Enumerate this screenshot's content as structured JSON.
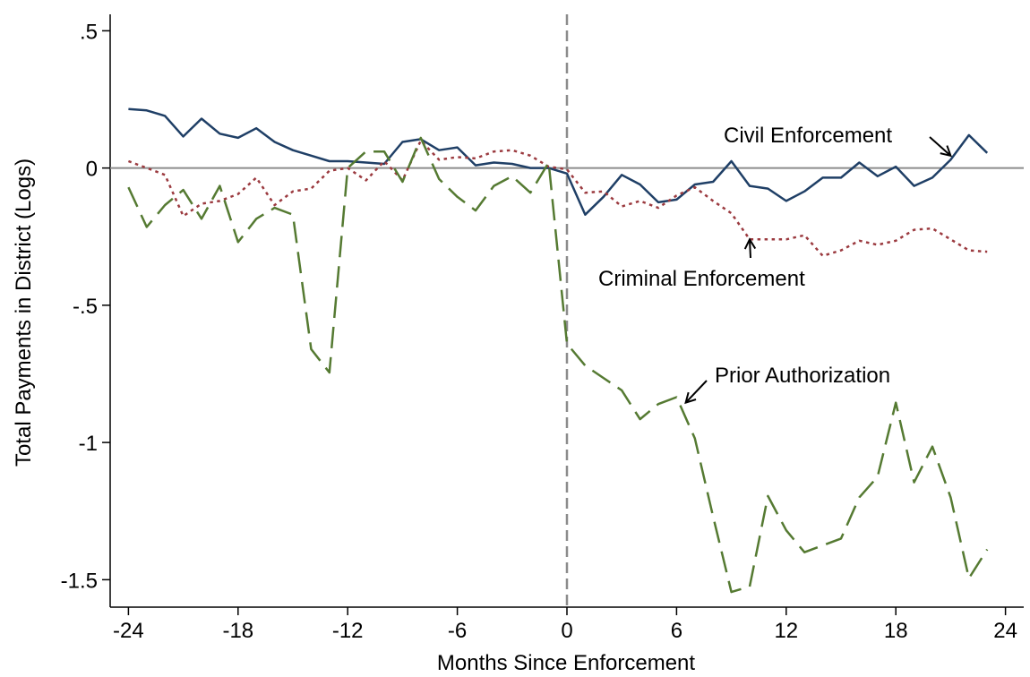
{
  "chart_data": {
    "type": "line",
    "xlabel": "Months Since Enforcement",
    "ylabel": "Total Payments in District (Logs)",
    "xlim": [
      -25,
      25
    ],
    "ylim": [
      -1.6,
      0.56
    ],
    "xticks": [
      -24,
      -18,
      -12,
      -6,
      0,
      6,
      12,
      18,
      24
    ],
    "xtick_labels": [
      "-24",
      "-18",
      "-12",
      "-6",
      "0",
      "6",
      "12",
      "18",
      "24"
    ],
    "yticks": [
      0.5,
      0,
      -0.5,
      -1,
      -1.5
    ],
    "ytick_labels": [
      ".5",
      "0",
      "-.5",
      "-1",
      "-1.5"
    ],
    "reference_lines": {
      "horizontal_y": 0,
      "vertical_x": 0
    },
    "grid": false,
    "legend": "none",
    "series": [
      {
        "name": "Civil Enforcement",
        "style": "solid",
        "color": "#1f3f66",
        "x": [
          -24,
          -23,
          -22,
          -21,
          -20,
          -19,
          -18,
          -17,
          -16,
          -15,
          -14,
          -13,
          -12,
          -11,
          -10,
          -9,
          -8,
          -7,
          -6,
          -5,
          -4,
          -3,
          -2,
          -1,
          0,
          1,
          2,
          3,
          4,
          5,
          6,
          7,
          8,
          9,
          10,
          11,
          12,
          13,
          14,
          15,
          16,
          17,
          18,
          19,
          20,
          21,
          22,
          23
        ],
        "y": [
          0.215,
          0.21,
          0.19,
          0.115,
          0.18,
          0.125,
          0.11,
          0.145,
          0.095,
          0.065,
          0.045,
          0.025,
          0.025,
          0.02,
          0.015,
          0.095,
          0.105,
          0.065,
          0.075,
          0.01,
          0.02,
          0.015,
          0.0,
          0.0,
          -0.02,
          -0.17,
          -0.105,
          -0.025,
          -0.06,
          -0.125,
          -0.115,
          -0.06,
          -0.05,
          0.025,
          -0.065,
          -0.075,
          -0.12,
          -0.085,
          -0.035,
          -0.035,
          0.02,
          -0.03,
          0.005,
          -0.065,
          -0.035,
          0.03,
          0.12,
          0.055
        ]
      },
      {
        "name": "Criminal Enforcement",
        "style": "dotted",
        "color": "#9b3a3f",
        "x": [
          -24,
          -23,
          -22,
          -21,
          -20,
          -19,
          -18,
          -17,
          -16,
          -15,
          -14,
          -13,
          -12,
          -11,
          -10,
          -9,
          -8,
          -7,
          -6,
          -5,
          -4,
          -3,
          -2,
          -1,
          0,
          1,
          2,
          3,
          4,
          5,
          6,
          7,
          8,
          9,
          10,
          11,
          12,
          13,
          14,
          15,
          16,
          17,
          18,
          19,
          20,
          21,
          22,
          23
        ],
        "y": [
          0.025,
          0.0,
          -0.025,
          -0.175,
          -0.13,
          -0.12,
          -0.095,
          -0.035,
          -0.135,
          -0.085,
          -0.075,
          -0.01,
          0.0,
          -0.045,
          0.025,
          -0.045,
          0.1,
          0.03,
          0.04,
          0.035,
          0.06,
          0.065,
          0.045,
          0.005,
          -0.005,
          -0.09,
          -0.085,
          -0.14,
          -0.12,
          -0.145,
          -0.1,
          -0.07,
          -0.12,
          -0.165,
          -0.26,
          -0.26,
          -0.26,
          -0.245,
          -0.32,
          -0.3,
          -0.265,
          -0.28,
          -0.265,
          -0.225,
          -0.22,
          -0.26,
          -0.3,
          -0.305
        ]
      },
      {
        "name": "Prior Authorization",
        "style": "dashed",
        "color": "#557a32",
        "x": [
          -24,
          -23,
          -22,
          -21,
          -20,
          -19,
          -18,
          -17,
          -16,
          -15,
          -14,
          -13,
          -12,
          -11,
          -10,
          -9,
          -8,
          -7,
          -6,
          -5,
          -4,
          -3,
          -2,
          -1,
          0,
          1,
          2,
          3,
          4,
          5,
          6,
          7,
          8,
          9,
          10,
          11,
          12,
          13,
          14,
          15,
          16,
          17,
          18,
          19,
          20,
          21,
          22,
          23
        ],
        "y": [
          -0.07,
          -0.215,
          -0.135,
          -0.08,
          -0.185,
          -0.065,
          -0.27,
          -0.185,
          -0.145,
          -0.17,
          -0.66,
          -0.745,
          0.0,
          0.06,
          0.06,
          -0.05,
          0.11,
          -0.04,
          -0.105,
          -0.155,
          -0.065,
          -0.03,
          -0.09,
          0.02,
          -0.64,
          -0.72,
          -0.765,
          -0.81,
          -0.915,
          -0.86,
          -0.835,
          -0.985,
          -1.27,
          -1.545,
          -1.525,
          -1.195,
          -1.32,
          -1.4,
          -1.375,
          -1.35,
          -1.2,
          -1.125,
          -0.855,
          -1.145,
          -1.015,
          -1.2,
          -1.495,
          -1.39
        ]
      }
    ],
    "annotations": [
      {
        "text": "Civil Enforcement",
        "series": "Civil Enforcement",
        "arrow_to_x": 21,
        "arrow_to_y": 0.045
      },
      {
        "text": "Criminal Enforcement",
        "series": "Criminal Enforcement",
        "arrow_to_x": 10,
        "arrow_to_y": -0.26
      },
      {
        "text": "Prior Authorization",
        "series": "Prior Authorization",
        "arrow_to_x": 6.5,
        "arrow_to_y": -0.855
      }
    ]
  }
}
